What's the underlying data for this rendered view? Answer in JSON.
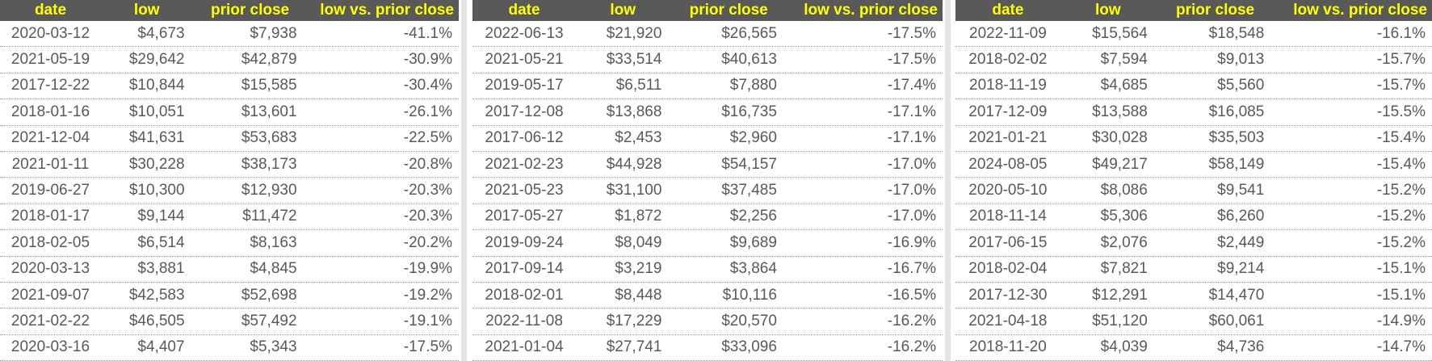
{
  "colors": {
    "header_bg": "#595959",
    "header_text": "#ffff00",
    "body_text": "#595959",
    "row_border_dotted": "#9b9b9b",
    "gutter_strip": "#e4e4e4",
    "row_bg": "#ffffff"
  },
  "chart_data": [
    {
      "type": "table",
      "columns": [
        "date",
        "low",
        "prior close",
        "low vs. prior close"
      ],
      "rows": [
        [
          "2020-03-12",
          "$4,673",
          "$7,938",
          "-41.1%"
        ],
        [
          "2021-05-19",
          "$29,642",
          "$42,879",
          "-30.9%"
        ],
        [
          "2017-12-22",
          "$10,844",
          "$15,585",
          "-30.4%"
        ],
        [
          "2018-01-16",
          "$10,051",
          "$13,601",
          "-26.1%"
        ],
        [
          "2021-12-04",
          "$41,631",
          "$53,683",
          "-22.5%"
        ],
        [
          "2021-01-11",
          "$30,228",
          "$38,173",
          "-20.8%"
        ],
        [
          "2019-06-27",
          "$10,300",
          "$12,930",
          "-20.3%"
        ],
        [
          "2018-01-17",
          "$9,144",
          "$11,472",
          "-20.3%"
        ],
        [
          "2018-02-05",
          "$6,514",
          "$8,163",
          "-20.2%"
        ],
        [
          "2020-03-13",
          "$3,881",
          "$4,845",
          "-19.9%"
        ],
        [
          "2021-09-07",
          "$42,583",
          "$52,698",
          "-19.2%"
        ],
        [
          "2021-02-22",
          "$46,505",
          "$57,492",
          "-19.1%"
        ],
        [
          "2020-03-16",
          "$4,407",
          "$5,343",
          "-17.5%"
        ]
      ]
    },
    {
      "type": "table",
      "columns": [
        "date",
        "low",
        "prior close",
        "low vs. prior close"
      ],
      "rows": [
        [
          "2022-06-13",
          "$21,920",
          "$26,565",
          "-17.5%"
        ],
        [
          "2021-05-21",
          "$33,514",
          "$40,613",
          "-17.5%"
        ],
        [
          "2019-05-17",
          "$6,511",
          "$7,880",
          "-17.4%"
        ],
        [
          "2017-12-08",
          "$13,868",
          "$16,735",
          "-17.1%"
        ],
        [
          "2017-06-12",
          "$2,453",
          "$2,960",
          "-17.1%"
        ],
        [
          "2021-02-23",
          "$44,928",
          "$54,157",
          "-17.0%"
        ],
        [
          "2021-05-23",
          "$31,100",
          "$37,485",
          "-17.0%"
        ],
        [
          "2017-05-27",
          "$1,872",
          "$2,256",
          "-17.0%"
        ],
        [
          "2019-09-24",
          "$8,049",
          "$9,689",
          "-16.9%"
        ],
        [
          "2017-09-14",
          "$3,219",
          "$3,864",
          "-16.7%"
        ],
        [
          "2018-02-01",
          "$8,448",
          "$10,116",
          "-16.5%"
        ],
        [
          "2022-11-08",
          "$17,229",
          "$20,570",
          "-16.2%"
        ],
        [
          "2021-01-04",
          "$27,741",
          "$33,096",
          "-16.2%"
        ]
      ]
    },
    {
      "type": "table",
      "columns": [
        "date",
        "low",
        "prior close",
        "low vs. prior close"
      ],
      "rows": [
        [
          "2022-11-09",
          "$15,564",
          "$18,548",
          "-16.1%"
        ],
        [
          "2018-02-02",
          "$7,594",
          "$9,013",
          "-15.7%"
        ],
        [
          "2018-11-19",
          "$4,685",
          "$5,560",
          "-15.7%"
        ],
        [
          "2017-12-09",
          "$13,588",
          "$16,085",
          "-15.5%"
        ],
        [
          "2021-01-21",
          "$30,028",
          "$35,503",
          "-15.4%"
        ],
        [
          "2024-08-05",
          "$49,217",
          "$58,149",
          "-15.4%"
        ],
        [
          "2020-05-10",
          "$8,086",
          "$9,541",
          "-15.2%"
        ],
        [
          "2018-11-14",
          "$5,306",
          "$6,260",
          "-15.2%"
        ],
        [
          "2017-06-15",
          "$2,076",
          "$2,449",
          "-15.2%"
        ],
        [
          "2018-02-04",
          "$7,821",
          "$9,214",
          "-15.1%"
        ],
        [
          "2017-12-30",
          "$12,291",
          "$14,470",
          "-15.1%"
        ],
        [
          "2021-04-18",
          "$51,120",
          "$60,061",
          "-14.9%"
        ],
        [
          "2018-11-20",
          "$4,039",
          "$4,736",
          "-14.7%"
        ]
      ]
    }
  ]
}
